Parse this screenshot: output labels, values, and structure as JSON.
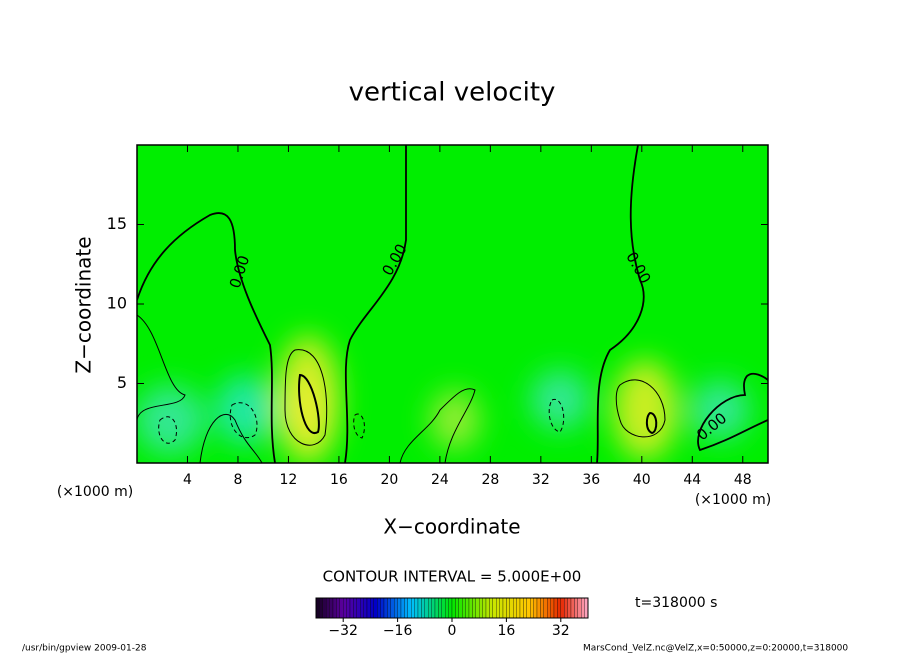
{
  "chart_data": {
    "type": "contour",
    "title": "vertical velocity",
    "x_label": "X−coordinate",
    "y_label": "Z−coordinate",
    "x_unit": "(×1000 m)",
    "y_unit": "(×1000 m)",
    "xlim": [
      0,
      50
    ],
    "xticks": [
      4,
      8,
      12,
      16,
      20,
      24,
      28,
      32,
      36,
      40,
      44,
      48
    ],
    "ylim": [
      0,
      20
    ],
    "yticks": [
      5,
      10,
      15
    ],
    "background_color": "#00ee00",
    "contour_labels": [
      {
        "value": 0,
        "label": "0.00"
      },
      {
        "value": 0,
        "label": "0.00"
      },
      {
        "value": 0,
        "label": "0.00"
      },
      {
        "value": 0,
        "label": "0.00"
      }
    ],
    "contour_interval": "CONTOUR INTERVAL = 5.000E+00",
    "time_label": "t=318000 s",
    "colorbar": {
      "lim": [
        -40,
        40
      ],
      "ticks": [
        {
          "value": -32,
          "label": "−32"
        },
        {
          "value": -16,
          "label": "−16"
        },
        0,
        16,
        32
      ]
    },
    "footer_left": "/usr/bin/gpview  2009-01-28",
    "footer_right": "MarsCond_VelZ.nc@VelZ,x=0:50000,z=0:20000,t=318000"
  }
}
